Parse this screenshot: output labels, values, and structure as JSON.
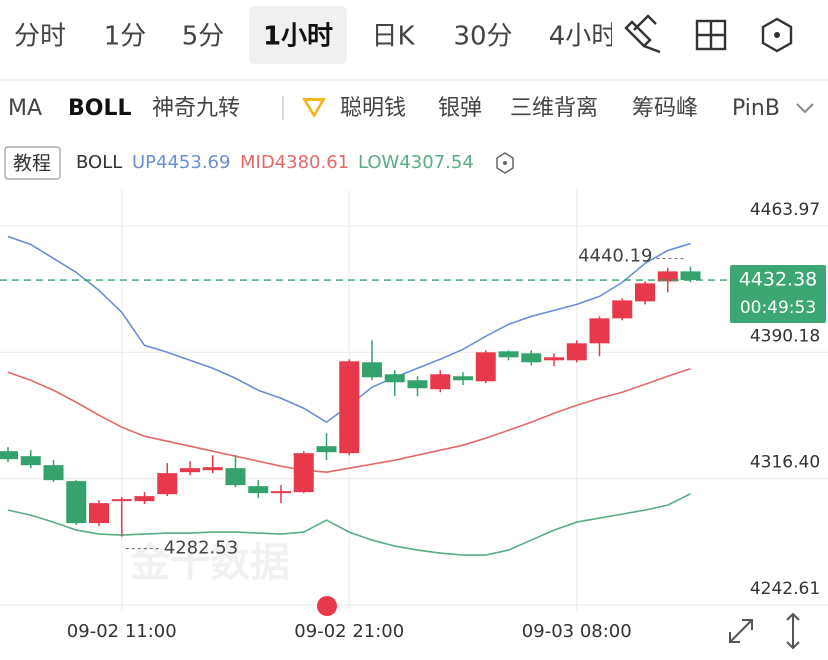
{
  "ui": {
    "tabs": [
      "分时",
      "1分",
      "5分",
      "1小时",
      "日K",
      "30分",
      "4小时"
    ],
    "active_tab": 3,
    "indicators": [
      "MA",
      "BOLL",
      "神奇九转",
      "聪明钱",
      "银弹",
      "三维背离",
      "筹码峰",
      "PinB"
    ],
    "active_indicator": 1,
    "tutorial": "教程",
    "watermark": "金十数据",
    "countdown": "00:49:53"
  },
  "chart_data": {
    "type": "candlestick",
    "indicator": "BOLL",
    "categories": [
      null,
      null,
      null,
      null,
      null,
      "09-02 11:00",
      null,
      null,
      null,
      null,
      null,
      null,
      null,
      null,
      null,
      "09-02 21:00",
      null,
      null,
      null,
      null,
      null,
      null,
      null,
      null,
      null,
      "09-03 08:00",
      null,
      null,
      null,
      null,
      null
    ],
    "open": [
      4332.44,
      4329.53,
      4324.28,
      4314.94,
      4290.44,
      4303.27,
      4303.27,
      4307.36,
      4320.19,
      4321.36,
      4322.53,
      4312.03,
      4307.94,
      4308.52,
      4335.36,
      4331.27,
      4384.35,
      4377.36,
      4373.86,
      4368.61,
      4376.19,
      4373.27,
      4390.77,
      4389.61,
      4385.52,
      4385.52,
      4395.43,
      4410.02,
      4419.94,
      4431.6,
      4437.44
    ],
    "high": [
      4334.77,
      4333.03,
      4327.19,
      4315.53,
      4303.86,
      4305.61,
      4308.52,
      4325.44,
      4326.61,
      4330.11,
      4330.11,
      4315.53,
      4312.61,
      4332.44,
      4342.94,
      4386.1,
      4397.19,
      4379.69,
      4376.19,
      4379.69,
      4378.52,
      4391.36,
      4391.36,
      4391.36,
      4389.61,
      4397.19,
      4411.19,
      4421.69,
      4431.6,
      4439.6,
      4440.19
    ],
    "low": [
      4326.03,
      4322.53,
      4314.36,
      4289.28,
      4288.69,
      4282.53,
      4301.53,
      4306.19,
      4318.44,
      4319.61,
      4311.44,
      4305.03,
      4302.11,
      4307.94,
      4327.19,
      4330.11,
      4373.86,
      4364.52,
      4364.52,
      4366.86,
      4371.03,
      4372.1,
      4385.52,
      4382.61,
      4382.03,
      4384.35,
      4387.85,
      4408.85,
      4418.19,
      4425.19,
      4431.02
    ],
    "close": [
      4327.78,
      4324.28,
      4315.53,
      4290.44,
      4302.11,
      4304.44,
      4306.19,
      4319.61,
      4322.53,
      4323.11,
      4312.61,
      4307.94,
      4309.11,
      4331.27,
      4331.86,
      4384.93,
      4375.6,
      4372.69,
      4369.19,
      4377.36,
      4373.86,
      4390.19,
      4387.27,
      4384.35,
      4387.27,
      4395.43,
      4410.02,
      4420.52,
      4430.44,
      4437.44,
      4432.38
    ],
    "up_color": "#e8394c",
    "down_color": "#35a26e",
    "series": [
      {
        "name": "UP",
        "color": "#6b8fd6",
        "values": [
          4457.85,
          4453.18,
          4445.02,
          4436.85,
          4426.35,
          4413.52,
          4394.27,
          4390.19,
          4385.52,
          4380.86,
          4375.02,
          4368.02,
          4363.36,
          4357.52,
          4349.36,
          4359.27,
          4369.77,
          4375.61,
          4380.86,
          4386.11,
          4391.94,
          4399.52,
          4406.52,
          4411.19,
          4414.69,
          4418.19,
          4422.85,
          4431.02,
          4442.1,
          4449.68,
          4453.69
        ]
      },
      {
        "name": "MID",
        "color": "#e36a6a",
        "values": [
          4378.52,
          4373.86,
          4368.02,
          4361.02,
          4353.44,
          4346.44,
          4341.19,
          4338.27,
          4335.36,
          4332.44,
          4329.53,
          4326.61,
          4323.69,
          4321.36,
          4320.19,
          4322.53,
          4324.86,
          4327.19,
          4330.11,
          4333.02,
          4335.94,
          4340.02,
          4344.69,
          4349.36,
          4354.61,
          4359.27,
          4363.36,
          4366.86,
          4371.52,
          4376.19,
          4380.61
        ]
      },
      {
        "name": "LOW",
        "color": "#58ad84",
        "values": [
          4298.03,
          4295.11,
          4291.03,
          4286.36,
          4284.03,
          4283.44,
          4284.03,
          4284.61,
          4284.61,
          4285.19,
          4285.19,
          4284.61,
          4284.03,
          4285.19,
          4292.19,
          4285.19,
          4280.53,
          4277.03,
          4274.69,
          4272.95,
          4271.78,
          4271.78,
          4274.69,
          4280.53,
          4286.36,
          4291.03,
          4293.36,
          4295.69,
          4298.03,
          4300.94,
          4307.54
        ]
      }
    ],
    "ylim": [
      4242.61,
      4482.05
    ],
    "yticks": [
      4463.97,
      4390.18,
      {
        "value": 4316.4,
        "label": "4316.40"
      },
      4242.61
    ],
    "grid": true
  }
}
